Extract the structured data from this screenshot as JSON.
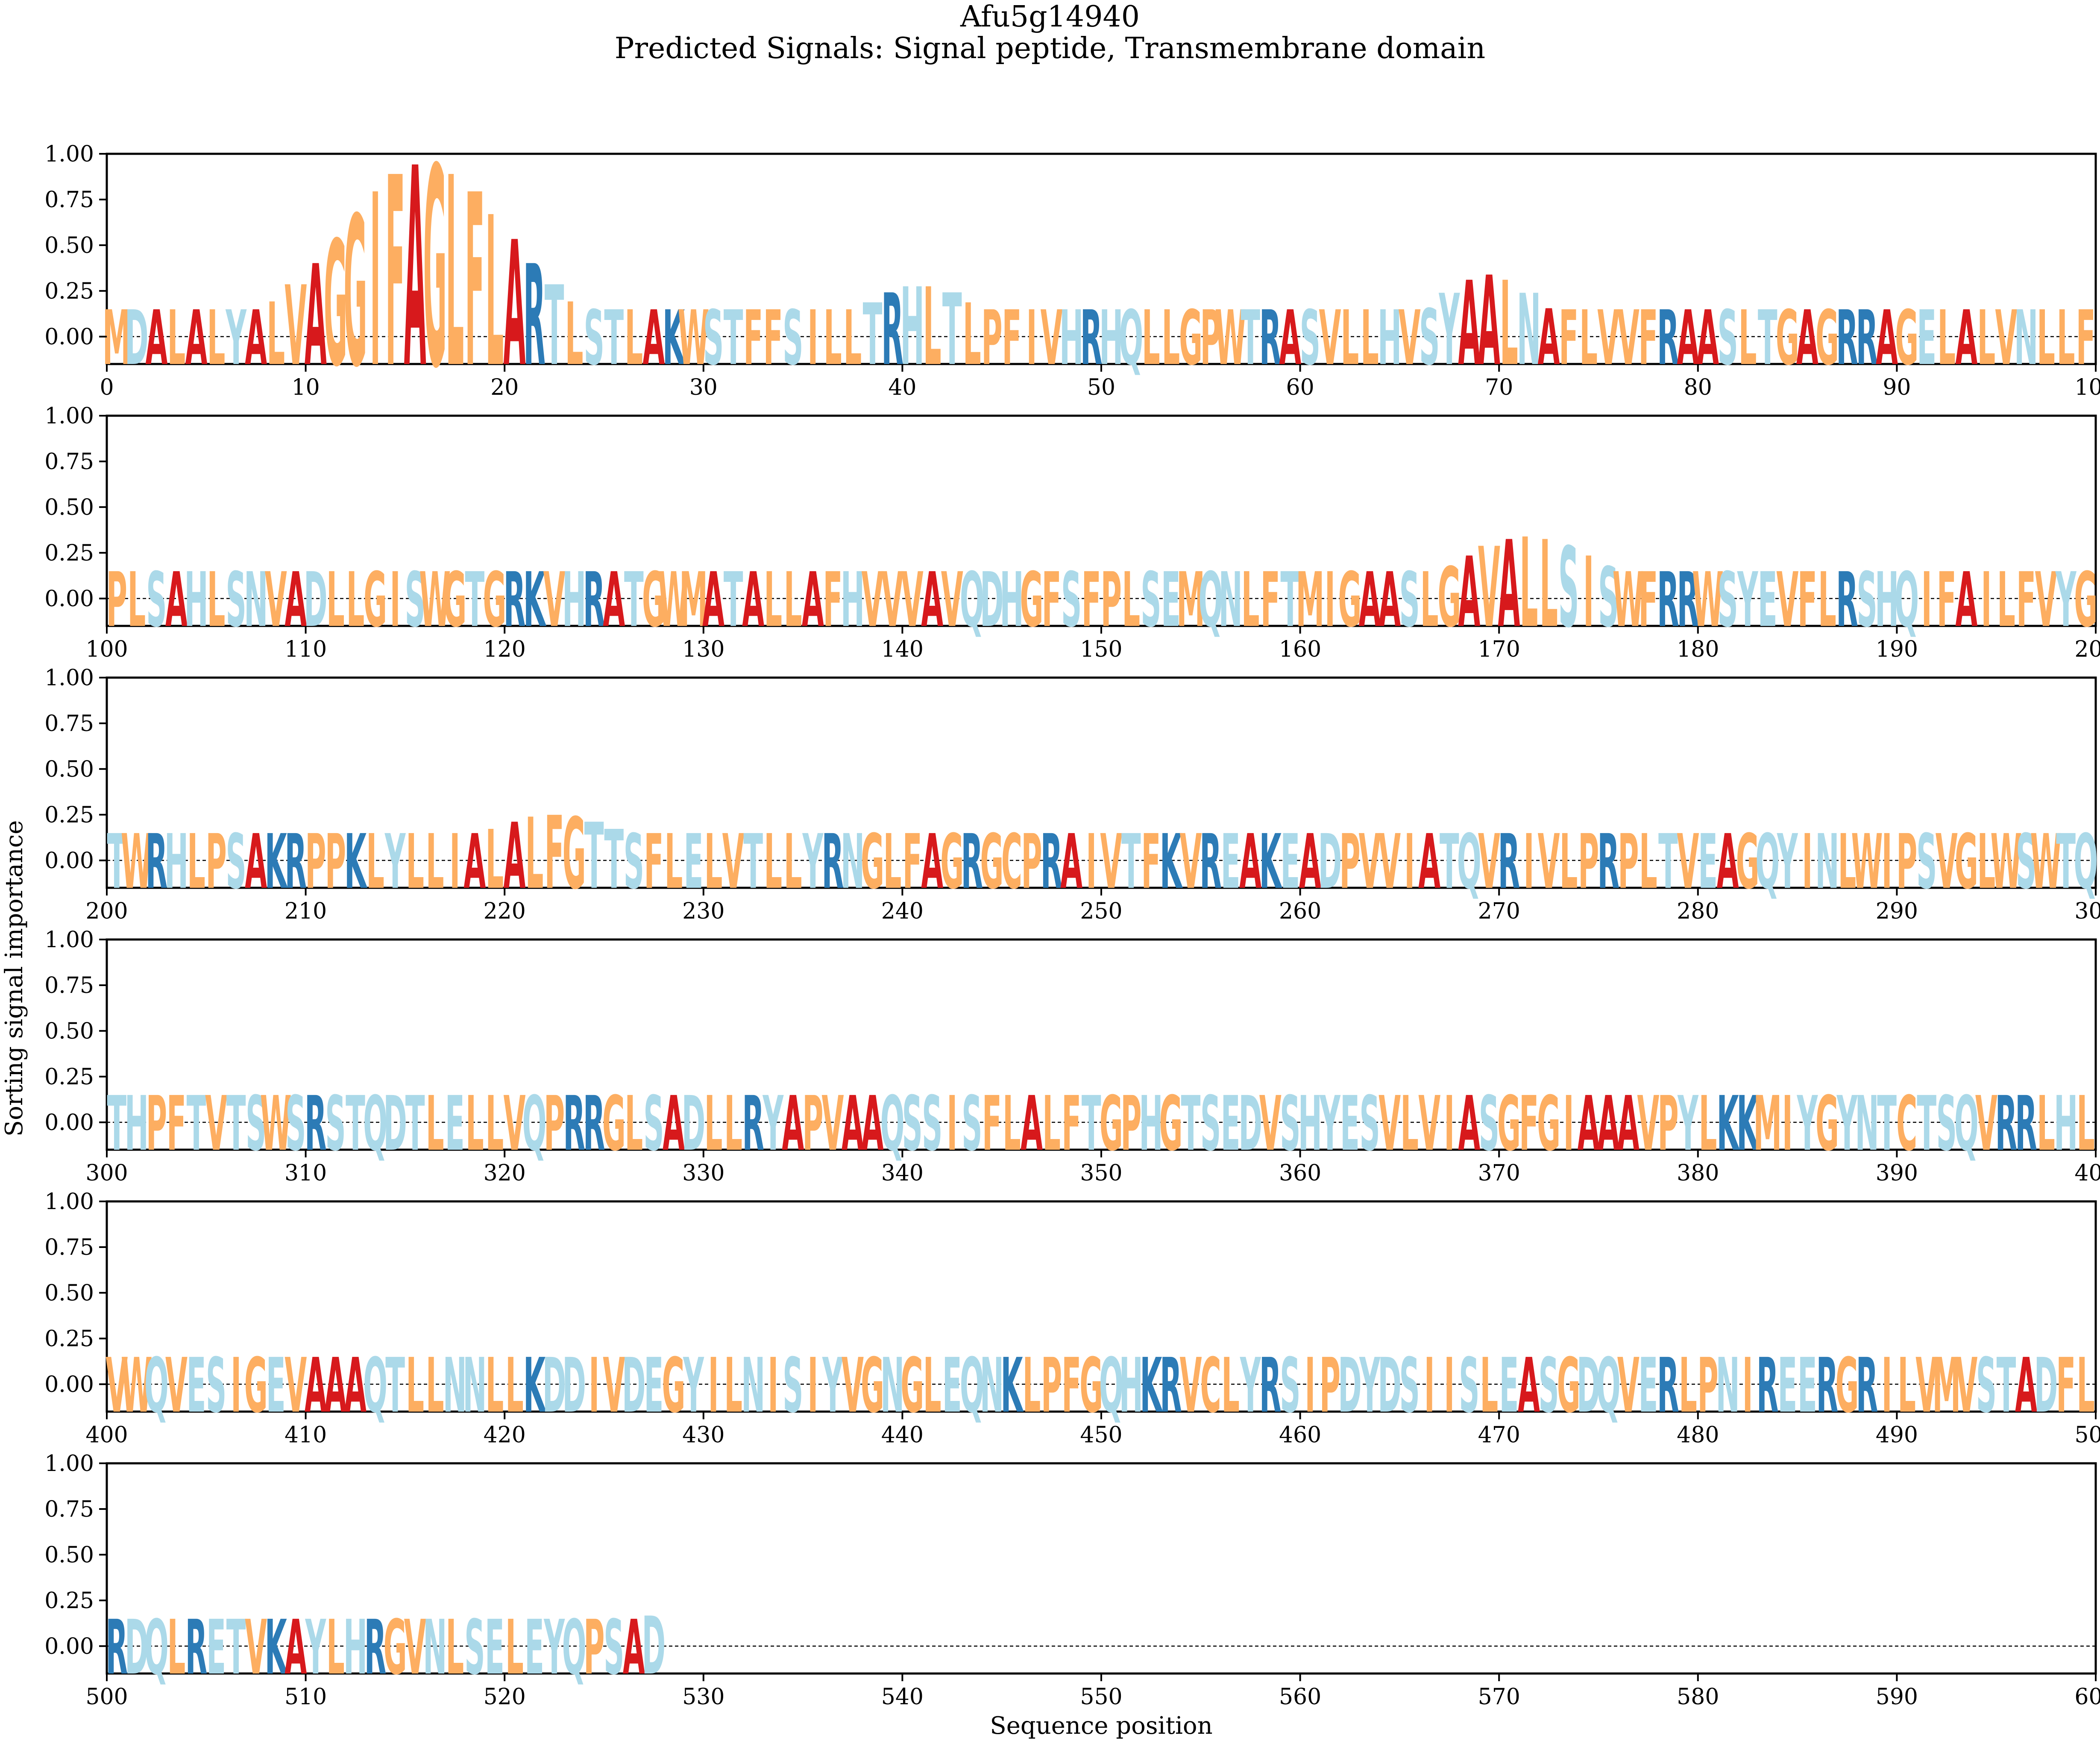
{
  "title": "Afu5g14940",
  "subtitle": "Predicted Signals: Signal peptide, Transmembrane domain",
  "chart_data": {
    "type": "sequence-logo",
    "xlabel": "Sequence position",
    "ylabel": "Sorting signal importance",
    "ylim": [
      -0.15,
      1.0
    ],
    "yticks": [
      "0.00",
      "0.25",
      "0.50",
      "0.75",
      "1.00"
    ],
    "ytick_values": [
      0,
      0.25,
      0.5,
      0.75,
      1.0
    ],
    "baseline": 0,
    "grid": false,
    "colors": {
      "hydrophobic": "#fdae61",
      "polar": "#abd9e9",
      "positive": "#2c7bb6",
      "alanine": "#d7191c",
      "hydrophobic_strong": "#fdae61"
    },
    "sequence": "MDALALYALVAGGIFAGLFLARTLSTLAKWSTFFSILLTRHLTLPFIVHRHQLLGPWTRASVLLHVSYAALNAFLVVFRAASLTGAGRRAGELALVNLLFPLSAHLSNVADLLGISWGTGRKVHRATGWMATALLAFHVVVAVQDHGFSFPLSEMQNLFTMIGAASLGAVALLSISWFRRWSYEVFLRSHQIFAILFVYGTWRHLPSAKRPPKLYLLIALALFGTTSFLELVTLLYRNGLFAGRGCPRAIVTFKVREAKEADPVVIATQVRIVLPRPLTVEAGQYINLWIPSVGLWSWTQTHPFTVTSWSRSTQDTLELLVQPRRGLSADLLRYAPVAAQSSISFLALFTGPHGTSEDVSHYESVLVIASGFGIAAAVPYLKKMIYGYNTCTSQVRRLHLVWQVESIGEVAAAQTLLNNLLKDDIVDEGYILNISIYVGNGLEQNKLPFGQHKRVCLYRSIPDYDSIISLEASGDQVERLPNIREERGRILVMVSTADFLRDQLRETVKAYLHRGVNLSELEYQPSAD",
    "panels": [
      {
        "xlim": [
          0,
          100
        ],
        "xticks": [
          "0",
          "10",
          "20",
          "30",
          "40",
          "50",
          "60",
          "70",
          "80",
          "90",
          "100"
        ]
      },
      {
        "xlim": [
          100,
          200
        ],
        "xticks": [
          "100",
          "110",
          "120",
          "130",
          "140",
          "150",
          "160",
          "170",
          "180",
          "190",
          "200"
        ]
      },
      {
        "xlim": [
          200,
          300
        ],
        "xticks": [
          "200",
          "210",
          "220",
          "230",
          "240",
          "250",
          "260",
          "270",
          "280",
          "290",
          "300"
        ]
      },
      {
        "xlim": [
          300,
          400
        ],
        "xticks": [
          "300",
          "310",
          "320",
          "330",
          "340",
          "350",
          "360",
          "370",
          "380",
          "390",
          "400"
        ]
      },
      {
        "xlim": [
          400,
          500
        ],
        "xticks": [
          "400",
          "410",
          "420",
          "430",
          "440",
          "450",
          "460",
          "470",
          "480",
          "490",
          "500"
        ]
      },
      {
        "xlim": [
          500,
          600
        ],
        "xticks": [
          "500",
          "510",
          "520",
          "530",
          "540",
          "550",
          "560",
          "570",
          "580",
          "590",
          "600"
        ]
      }
    ],
    "importance_peaks": [
      {
        "start": 1,
        "end": 30,
        "center": 15.5,
        "height": 0.95,
        "width": 4.2
      },
      {
        "start": 30,
        "end": 52,
        "center": 40.5,
        "height": 0.28,
        "width": 2.8
      },
      {
        "start": 58,
        "end": 78,
        "center": 69.0,
        "height": 0.34,
        "width": 2.4
      },
      {
        "start": 100,
        "end": 108,
        "center": 100.5,
        "height": 0.12,
        "width": 1.6
      },
      {
        "start": 158,
        "end": 184,
        "center": 171.0,
        "height": 0.34,
        "width": 3.5
      },
      {
        "start": 210,
        "end": 234,
        "center": 222.0,
        "height": 0.25,
        "width": 3.5
      },
      {
        "start": 520,
        "end": 530,
        "center": 528.5,
        "height": 0.26,
        "width": 1.6
      }
    ],
    "seq_end": 530,
    "base_height": 0.15
  }
}
